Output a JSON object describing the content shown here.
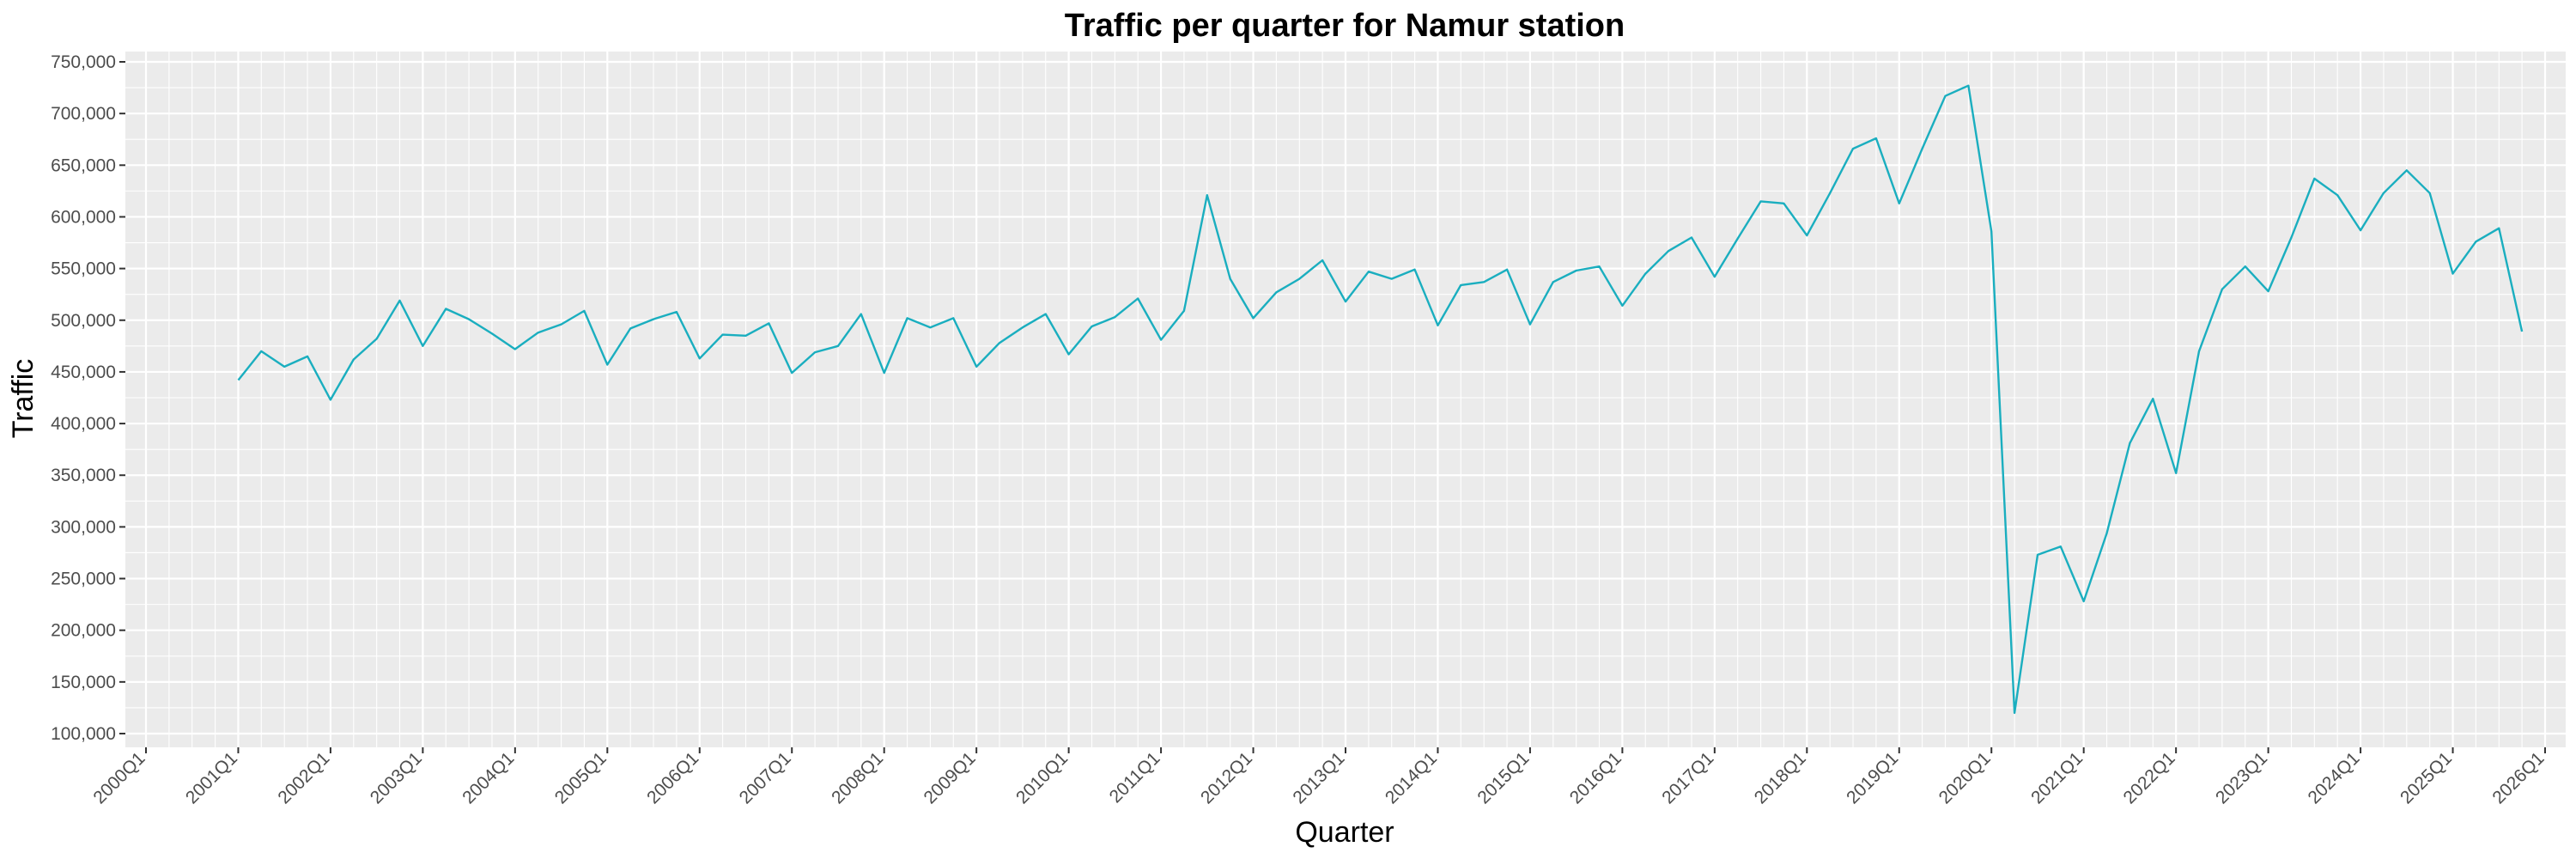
{
  "chart_data": {
    "type": "line",
    "title": "Traffic per quarter for Namur station",
    "xlabel": "Quarter",
    "ylabel": "Traffic",
    "x_tick_labels": [
      "2000Q1",
      "2001Q1",
      "2002Q1",
      "2003Q1",
      "2004Q1",
      "2005Q1",
      "2006Q1",
      "2007Q1",
      "2008Q1",
      "2009Q1",
      "2010Q1",
      "2011Q1",
      "2012Q1",
      "2013Q1",
      "2014Q1",
      "2015Q1",
      "2016Q1",
      "2017Q1",
      "2018Q1",
      "2019Q1",
      "2020Q1",
      "2021Q1",
      "2022Q1",
      "2023Q1",
      "2024Q1",
      "2025Q1",
      "2026Q1"
    ],
    "y_tick_values": [
      100000,
      150000,
      200000,
      250000,
      300000,
      350000,
      400000,
      450000,
      500000,
      550000,
      600000,
      650000,
      700000,
      750000
    ],
    "y_tick_labels": [
      "100,000",
      "150,000",
      "200,000",
      "250,000",
      "300,000",
      "350,000",
      "400,000",
      "450,000",
      "500,000",
      "550,000",
      "600,000",
      "650,000",
      "700,000",
      "750,000"
    ],
    "xlim": [
      "2000Q1",
      "2026Q1"
    ],
    "ylim": [
      100000,
      750000
    ],
    "grid": true,
    "series": [
      {
        "color": "#1aaebf",
        "x": [
          "2001Q1",
          "2001Q2",
          "2001Q3",
          "2001Q4",
          "2002Q1",
          "2002Q2",
          "2002Q3",
          "2002Q4",
          "2003Q1",
          "2003Q2",
          "2003Q3",
          "2003Q4",
          "2004Q1",
          "2004Q2",
          "2004Q3",
          "2004Q4",
          "2005Q1",
          "2005Q2",
          "2005Q3",
          "2005Q4",
          "2006Q1",
          "2006Q2",
          "2006Q3",
          "2006Q4",
          "2007Q1",
          "2007Q2",
          "2007Q3",
          "2007Q4",
          "2008Q1",
          "2008Q2",
          "2008Q3",
          "2008Q4",
          "2009Q1",
          "2009Q2",
          "2009Q3",
          "2009Q4",
          "2010Q1",
          "2010Q2",
          "2010Q3",
          "2010Q4",
          "2011Q1",
          "2011Q2",
          "2011Q3",
          "2011Q4",
          "2012Q1",
          "2012Q2",
          "2012Q3",
          "2012Q4",
          "2013Q1",
          "2013Q2",
          "2013Q3",
          "2013Q4",
          "2014Q1",
          "2014Q2",
          "2014Q3",
          "2014Q4",
          "2015Q1",
          "2015Q2",
          "2015Q3",
          "2015Q4",
          "2016Q1",
          "2016Q2",
          "2016Q3",
          "2016Q4",
          "2017Q1",
          "2017Q2",
          "2017Q3",
          "2017Q4",
          "2018Q1",
          "2018Q2",
          "2018Q3",
          "2018Q4",
          "2019Q1",
          "2019Q2",
          "2019Q3",
          "2019Q4",
          "2020Q1",
          "2020Q2",
          "2020Q3",
          "2020Q4",
          "2021Q1",
          "2021Q2",
          "2021Q3",
          "2021Q4",
          "2022Q1",
          "2022Q2",
          "2022Q3",
          "2022Q4",
          "2023Q1",
          "2023Q2",
          "2023Q3",
          "2023Q4",
          "2024Q1",
          "2024Q2",
          "2024Q3",
          "2024Q4",
          "2025Q1",
          "2025Q2",
          "2025Q3",
          "2025Q4"
        ],
        "values": [
          442000,
          470000,
          455000,
          465000,
          423000,
          462000,
          482000,
          519000,
          475000,
          511000,
          501000,
          487000,
          472000,
          488000,
          496000,
          509000,
          457000,
          492000,
          501000,
          508000,
          463000,
          486000,
          485000,
          497000,
          449000,
          469000,
          475000,
          506000,
          449000,
          502000,
          493000,
          502000,
          455000,
          478000,
          493000,
          506000,
          467000,
          494000,
          503000,
          521000,
          481000,
          509000,
          621000,
          540000,
          502000,
          527000,
          540000,
          558000,
          518000,
          547000,
          540000,
          549000,
          495000,
          534000,
          537000,
          549000,
          496000,
          537000,
          548000,
          552000,
          514000,
          545000,
          567000,
          580000,
          542000,
          579000,
          615000,
          613000,
          582000,
          623000,
          666000,
          676000,
          613000,
          666000,
          717000,
          727000,
          586000,
          120000,
          273000,
          281000,
          228000,
          294000,
          381000,
          424000,
          352000,
          470000,
          530000,
          552000,
          528000,
          580000,
          637000,
          621000,
          587000,
          623000,
          645000,
          623000,
          545000,
          576000,
          589000,
          489000
        ]
      }
    ]
  }
}
